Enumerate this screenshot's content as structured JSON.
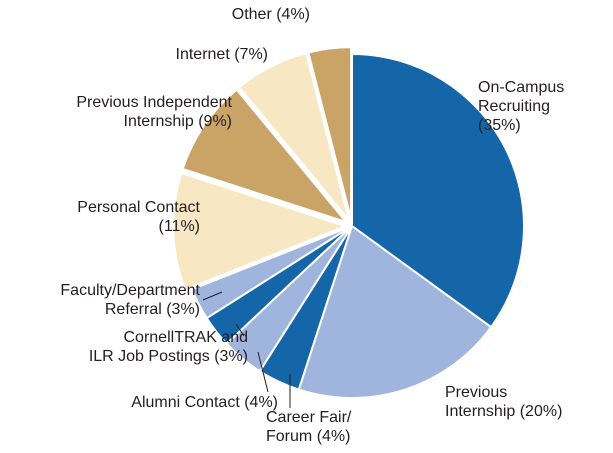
{
  "chart_data": {
    "type": "pie",
    "categories": [
      "On-Campus\nRecruiting",
      "Previous\nInternship",
      "Career Fair/\nForum",
      "Alumni Contact",
      "CornellTRAK and\nILR Job Postings",
      "Faculty/Department\nReferral",
      "Personal Contact",
      "Previous Independent\nInternship",
      "Internet",
      "Other"
    ],
    "values": [
      35,
      20,
      4,
      4,
      3,
      3,
      11,
      9,
      7,
      4
    ],
    "value_labels": [
      "(35%)",
      "(20%)",
      "(4%)",
      "(4%)",
      "(3%)",
      "(3%)",
      "(11%)",
      "(9%)",
      "(7%)",
      "(4%)"
    ],
    "colors": [
      "#1565a9",
      "#9fb5dd",
      "#1565a9",
      "#9fb5dd",
      "#1565a9",
      "#9fb5dd",
      "#f8e7c3",
      "#c9a466",
      "#f8e7c3",
      "#c9a466"
    ],
    "explode": [
      0,
      0,
      0,
      0,
      0,
      0,
      0.04,
      0.04,
      0.04,
      0.04
    ]
  }
}
